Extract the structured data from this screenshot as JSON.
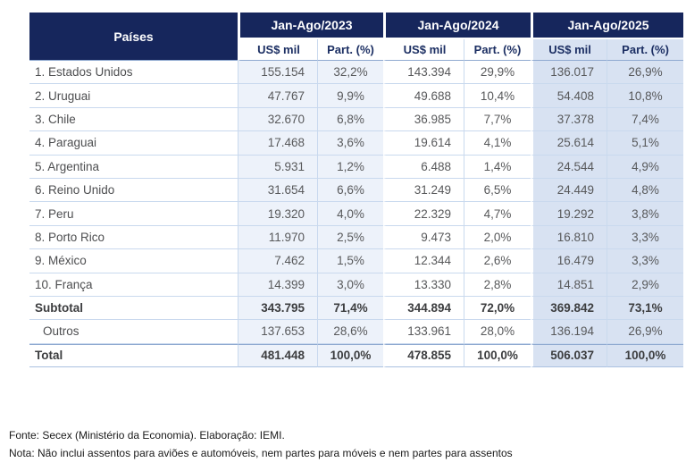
{
  "header": {
    "paises": "Países",
    "groups": [
      {
        "year": "Jan-Ago/2023",
        "usd": "US$ mil",
        "part": "Part. (%)"
      },
      {
        "year": "Jan-Ago/2024",
        "usd": "US$ mil",
        "part": "Part. (%)"
      },
      {
        "year": "Jan-Ago/2025",
        "usd": "US$ mil",
        "part": "Part. (%)"
      }
    ]
  },
  "chart_data": {
    "type": "table",
    "title": "",
    "columns": [
      "Países",
      "Jan-Ago/2023 US$ mil",
      "Jan-Ago/2023 Part. (%)",
      "Jan-Ago/2024 US$ mil",
      "Jan-Ago/2024 Part. (%)",
      "Jan-Ago/2025 US$ mil",
      "Jan-Ago/2025 Part. (%)"
    ],
    "rows": [
      {
        "label": "1. Estados Unidos",
        "values": [
          "155.154",
          "32,2%",
          "143.394",
          "29,9%",
          "136.017",
          "26,9%"
        ],
        "style": "country"
      },
      {
        "label": "2. Uruguai",
        "values": [
          "47.767",
          "9,9%",
          "49.688",
          "10,4%",
          "54.408",
          "10,8%"
        ],
        "style": "country"
      },
      {
        "label": "3. Chile",
        "values": [
          "32.670",
          "6,8%",
          "36.985",
          "7,7%",
          "37.378",
          "7,4%"
        ],
        "style": "country"
      },
      {
        "label": "4. Paraguai",
        "values": [
          "17.468",
          "3,6%",
          "19.614",
          "4,1%",
          "25.614",
          "5,1%"
        ],
        "style": "country"
      },
      {
        "label": "5. Argentina",
        "values": [
          "5.931",
          "1,2%",
          "6.488",
          "1,4%",
          "24.544",
          "4,9%"
        ],
        "style": "country"
      },
      {
        "label": "6. Reino Unido",
        "values": [
          "31.654",
          "6,6%",
          "31.249",
          "6,5%",
          "24.449",
          "4,8%"
        ],
        "style": "country"
      },
      {
        "label": "7. Peru",
        "values": [
          "19.320",
          "4,0%",
          "22.329",
          "4,7%",
          "19.292",
          "3,8%"
        ],
        "style": "country"
      },
      {
        "label": "8. Porto Rico",
        "values": [
          "11.970",
          "2,5%",
          "9.473",
          "2,0%",
          "16.810",
          "3,3%"
        ],
        "style": "country"
      },
      {
        "label": "9. México",
        "values": [
          "7.462",
          "1,5%",
          "12.344",
          "2,6%",
          "16.479",
          "3,3%"
        ],
        "style": "country"
      },
      {
        "label": "10. França",
        "values": [
          "14.399",
          "3,0%",
          "13.330",
          "2,8%",
          "14.851",
          "2,9%"
        ],
        "style": "country"
      },
      {
        "label": "Subtotal",
        "values": [
          "343.795",
          "71,4%",
          "344.894",
          "72,0%",
          "369.842",
          "73,1%"
        ],
        "style": "subtotal"
      },
      {
        "label": "Outros",
        "values": [
          "137.653",
          "28,6%",
          "133.961",
          "28,0%",
          "136.194",
          "26,9%"
        ],
        "style": "outros"
      },
      {
        "label": "Total",
        "values": [
          "481.448",
          "100,0%",
          "478.855",
          "100,0%",
          "506.037",
          "100,0%"
        ],
        "style": "total"
      }
    ]
  },
  "footer": {
    "fonte": "Fonte: Secex (Ministério da Economia). Elaboração: IEMI.",
    "nota": "Nota: Não inclui assentos para aviões e automóveis, nem partes para móveis e nem partes para assentos"
  },
  "colors": {
    "header_navy": "#16265c",
    "highlight_2025": "#d8e2f2",
    "tint_2023": "#edf2fa",
    "grid_line": "#c9d9ee",
    "strong_line": "#8fa9d0"
  }
}
